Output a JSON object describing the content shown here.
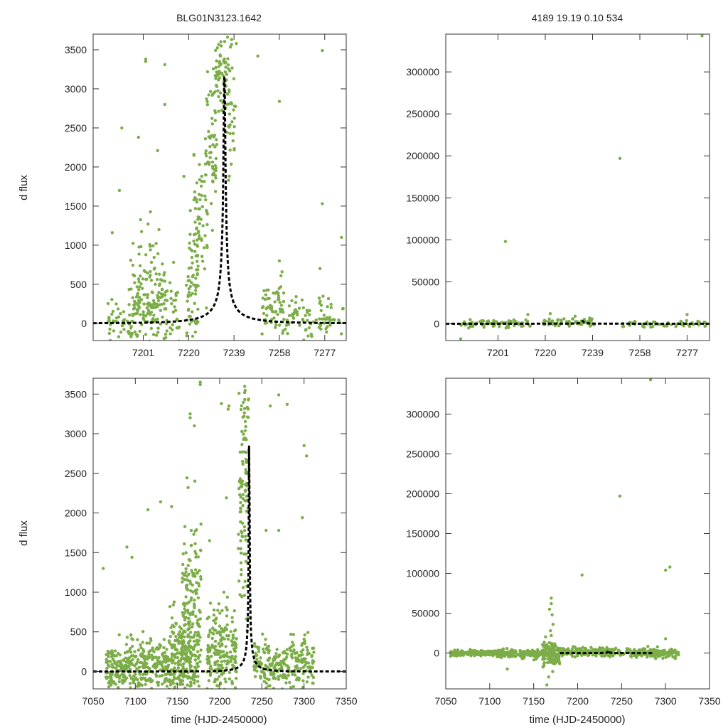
{
  "colors": {
    "points": "#7cad48",
    "model": "#000000",
    "frame": "#333333"
  },
  "chart_data": [
    {
      "id": "top-left",
      "type": "scatter",
      "title": "BLG01N3123.1642",
      "xlabel": "",
      "ylabel": "d flux",
      "xlim": [
        7180,
        7286
      ],
      "ylim": [
        -220,
        3700
      ],
      "xticks": [
        7201,
        7220,
        7239,
        7258,
        7277
      ],
      "yticks": [
        0,
        500,
        1000,
        1500,
        2000,
        2500,
        3000,
        3500
      ],
      "model": {
        "style": "dashed",
        "t0": 7235,
        "u0": 0.0145,
        "tE": 25,
        "fs": 48,
        "cut": [
          -220,
          3700
        ]
      },
      "clusters": [
        {
          "x": [
            7186,
            7196
          ],
          "ymean": 50,
          "ysd": 130,
          "n": 40
        },
        {
          "x": [
            7195,
            7211
          ],
          "ymean": 200,
          "ysd": 250,
          "n": 160
        },
        {
          "x": [
            7199,
            7209
          ],
          "ymean": 700,
          "ysd": 400,
          "n": 40
        },
        {
          "x": [
            7212,
            7216
          ],
          "ymean": 200,
          "ysd": 250,
          "n": 25
        },
        {
          "x": [
            7219,
            7224
          ],
          "ymean": 400,
          "ysd": 350,
          "n": 60
        },
        {
          "x": [
            7222,
            7228
          ],
          "ymean": 1300,
          "ysd": 400,
          "n": 60
        },
        {
          "x": [
            7227,
            7232
          ],
          "ymean": 2300,
          "ysd": 400,
          "n": 60
        },
        {
          "x": [
            7231,
            7237
          ],
          "ymean": 3200,
          "ysd": 300,
          "n": 70
        },
        {
          "x": [
            7236,
            7240
          ],
          "ymean": 2300,
          "ysd": 600,
          "n": 30
        },
        {
          "x": [
            7250,
            7260
          ],
          "ymean": 200,
          "ysd": 170,
          "n": 60
        },
        {
          "x": [
            7260,
            7285
          ],
          "ymean": 80,
          "ysd": 150,
          "n": 90
        }
      ],
      "outliers": [
        [
          7202,
          3350
        ],
        [
          7202,
          3380
        ],
        [
          7210,
          3310
        ],
        [
          7210,
          2800
        ],
        [
          7192,
          2500
        ],
        [
          7199,
          2380
        ],
        [
          7207,
          2210
        ],
        [
          7218,
          1880
        ],
        [
          7249,
          3420
        ],
        [
          7258,
          2840
        ],
        [
          7276,
          3490
        ],
        [
          7276,
          1530
        ],
        [
          7284,
          1100
        ],
        [
          7258,
          800
        ],
        [
          7275,
          700
        ],
        [
          7191,
          1700
        ],
        [
          7188,
          1160
        ],
        [
          7238,
          3630
        ],
        [
          7240,
          3580
        ]
      ]
    },
    {
      "id": "top-right",
      "type": "scatter",
      "title": "4189   19.19   0.10   534",
      "xlabel": "",
      "ylabel": "",
      "xlim": [
        7180,
        7286
      ],
      "ylim": [
        -20000,
        345000
      ],
      "xticks": [
        7201,
        7220,
        7239,
        7258,
        7277
      ],
      "yticks": [
        0,
        50000,
        100000,
        150000,
        200000,
        250000,
        300000
      ],
      "model": {
        "style": "dashed",
        "t0": 7235,
        "u0": 0.0145,
        "tE": 25,
        "fs": 48,
        "cut": [
          -20000,
          345000
        ]
      },
      "clusters": [
        {
          "x": [
            7186,
            7214
          ],
          "ymean": 0,
          "ysd": 2500,
          "n": 80
        },
        {
          "x": [
            7219,
            7240
          ],
          "ymean": 1500,
          "ysd": 2500,
          "n": 60
        },
        {
          "x": [
            7250,
            7285
          ],
          "ymean": 0,
          "ysd": 2000,
          "n": 60
        }
      ],
      "outliers": [
        [
          7204,
          98000
        ],
        [
          7250,
          197000
        ],
        [
          7283,
          343000
        ],
        [
          7232,
          9000
        ],
        [
          7222,
          12000
        ],
        [
          7213,
          11000
        ],
        [
          7277,
          11000
        ],
        [
          7186,
          -18000
        ]
      ]
    },
    {
      "id": "bottom-left",
      "type": "scatter",
      "title": "",
      "xlabel": "time (HJD-2450000)",
      "ylabel": "d flux",
      "xlim": [
        7050,
        7350
      ],
      "ylim": [
        -220,
        3700
      ],
      "xticks": [
        7050,
        7100,
        7150,
        7200,
        7250,
        7300,
        7350
      ],
      "yticks": [
        0,
        500,
        1000,
        1500,
        2000,
        2500,
        3000,
        3500
      ],
      "model": {
        "style": "dashed",
        "t0": 7235,
        "u0": 0.0145,
        "tE": 25,
        "fs": 48,
        "cut": [
          -220,
          3700
        ]
      },
      "clusters": [
        {
          "x": [
            7065,
            7090
          ],
          "ymean": 0,
          "ysd": 150,
          "n": 130
        },
        {
          "x": [
            7090,
            7140
          ],
          "ymean": 80,
          "ysd": 160,
          "n": 220
        },
        {
          "x": [
            7140,
            7175
          ],
          "ymean": 150,
          "ysd": 250,
          "n": 240
        },
        {
          "x": [
            7155,
            7178
          ],
          "ymean": 900,
          "ysd": 500,
          "n": 150
        },
        {
          "x": [
            7185,
            7220
          ],
          "ymean": 200,
          "ysd": 300,
          "n": 220
        },
        {
          "x": [
            7222,
            7235
          ],
          "ymean": 2300,
          "ysd": 900,
          "n": 120
        },
        {
          "x": [
            7240,
            7280
          ],
          "ymean": 80,
          "ysd": 170,
          "n": 140
        },
        {
          "x": [
            7280,
            7312
          ],
          "ymean": 80,
          "ysd": 180,
          "n": 110
        }
      ],
      "outliers": [
        [
          7165,
          3200
        ],
        [
          7165,
          3250
        ],
        [
          7170,
          3100
        ],
        [
          7177,
          3650
        ],
        [
          7177,
          3620
        ],
        [
          7202,
          3380
        ],
        [
          7210,
          3310
        ],
        [
          7211,
          3350
        ],
        [
          7260,
          3350
        ],
        [
          7270,
          3490
        ],
        [
          7280,
          3370
        ],
        [
          7300,
          2850
        ],
        [
          7303,
          2720
        ],
        [
          7130,
          2140
        ],
        [
          7143,
          2080
        ],
        [
          7115,
          2040
        ],
        [
          7208,
          2190
        ],
        [
          7298,
          1940
        ],
        [
          7270,
          1780
        ],
        [
          7255,
          1780
        ],
        [
          7090,
          1570
        ],
        [
          7096,
          1440
        ],
        [
          7062,
          1300
        ],
        [
          7188,
          1650
        ]
      ]
    },
    {
      "id": "bottom-right",
      "type": "scatter",
      "title": "",
      "xlabel": "time (HJD-2450000)",
      "ylabel": "",
      "xlim": [
        7050,
        7350
      ],
      "ylim": [
        -45000,
        345000
      ],
      "xticks": [
        7050,
        7100,
        7150,
        7200,
        7250,
        7300,
        7350
      ],
      "yticks": [
        0,
        50000,
        100000,
        150000,
        200000,
        250000,
        300000
      ],
      "model": {
        "style": "dashed",
        "t0": 7235,
        "u0": 0.0145,
        "tE": 25,
        "fs": 48,
        "cut": [
          -45000,
          345000
        ],
        "xrange": [
          7180,
          7286
        ]
      },
      "clusters": [
        {
          "x": [
            7055,
            7105
          ],
          "ymean": 0,
          "ysd": 1500,
          "n": 160
        },
        {
          "x": [
            7105,
            7165
          ],
          "ymean": 0,
          "ysd": 3000,
          "n": 200
        },
        {
          "x": [
            7160,
            7180
          ],
          "ymean": 0,
          "ysd": 8000,
          "n": 120
        },
        {
          "x": [
            7180,
            7240
          ],
          "ymean": 1000,
          "ysd": 3000,
          "n": 180
        },
        {
          "x": [
            7240,
            7315
          ],
          "ymean": 0,
          "ysd": 3000,
          "n": 180
        }
      ],
      "outliers": [
        [
          7170,
          69000
        ],
        [
          7170,
          62000
        ],
        [
          7168,
          55000
        ],
        [
          7171,
          48000
        ],
        [
          7172,
          36000
        ],
        [
          7169,
          28000
        ],
        [
          7170,
          22000
        ],
        [
          7167,
          -30000
        ],
        [
          7165,
          -40000
        ],
        [
          7205,
          98000
        ],
        [
          7248,
          197000
        ],
        [
          7283,
          343000
        ],
        [
          7300,
          104000
        ],
        [
          7305,
          108000
        ],
        [
          7120,
          -20000
        ],
        [
          7300,
          18000
        ]
      ]
    }
  ]
}
